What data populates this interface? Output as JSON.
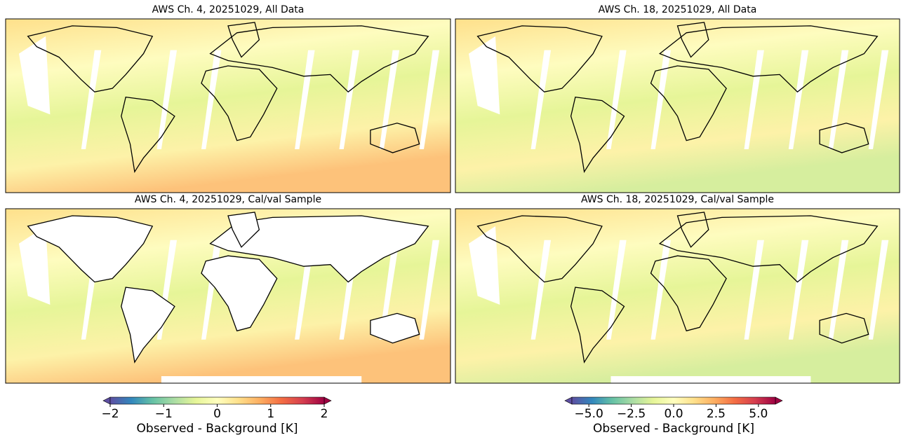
{
  "panels": [
    {
      "title": "AWS Ch. 4, 20251029, All Data"
    },
    {
      "title": "AWS Ch. 18, 20251029, All Data"
    },
    {
      "title": "AWS Ch. 4, 20251029, Cal/val Sample"
    },
    {
      "title": "AWS Ch. 18, 20251029, Cal/val Sample"
    }
  ],
  "colorbars": [
    {
      "label": "Observed - Background [K]",
      "lim": [
        -2,
        2
      ],
      "ticks": [
        {
          "value": -2,
          "label": "−2"
        },
        {
          "value": -1,
          "label": "−1"
        },
        0,
        1,
        2
      ],
      "colors": [
        "#5e4fa2",
        "#3288bd",
        "#66c2a5",
        "#abdda4",
        "#e6f598",
        "#ffffbf",
        "#fee08b",
        "#fdae61",
        "#f46d43",
        "#d53e4f",
        "#9e0142"
      ]
    },
    {
      "label": "Observed - Background [K]",
      "lim": [
        -6,
        6
      ],
      "ticks": [
        {
          "value": -5,
          "label": "−5.0"
        },
        {
          "value": -2.5,
          "label": "−2.5"
        },
        {
          "value": 0,
          "label": "0.0"
        },
        {
          "value": 2.5,
          "label": "2.5"
        },
        {
          "value": 5,
          "label": "5.0"
        }
      ],
      "colors": [
        "#5e4fa2",
        "#3288bd",
        "#66c2a5",
        "#abdda4",
        "#e6f598",
        "#ffffbf",
        "#fee08b",
        "#fdae61",
        "#f46d43",
        "#d53e4f",
        "#9e0142"
      ]
    }
  ]
}
